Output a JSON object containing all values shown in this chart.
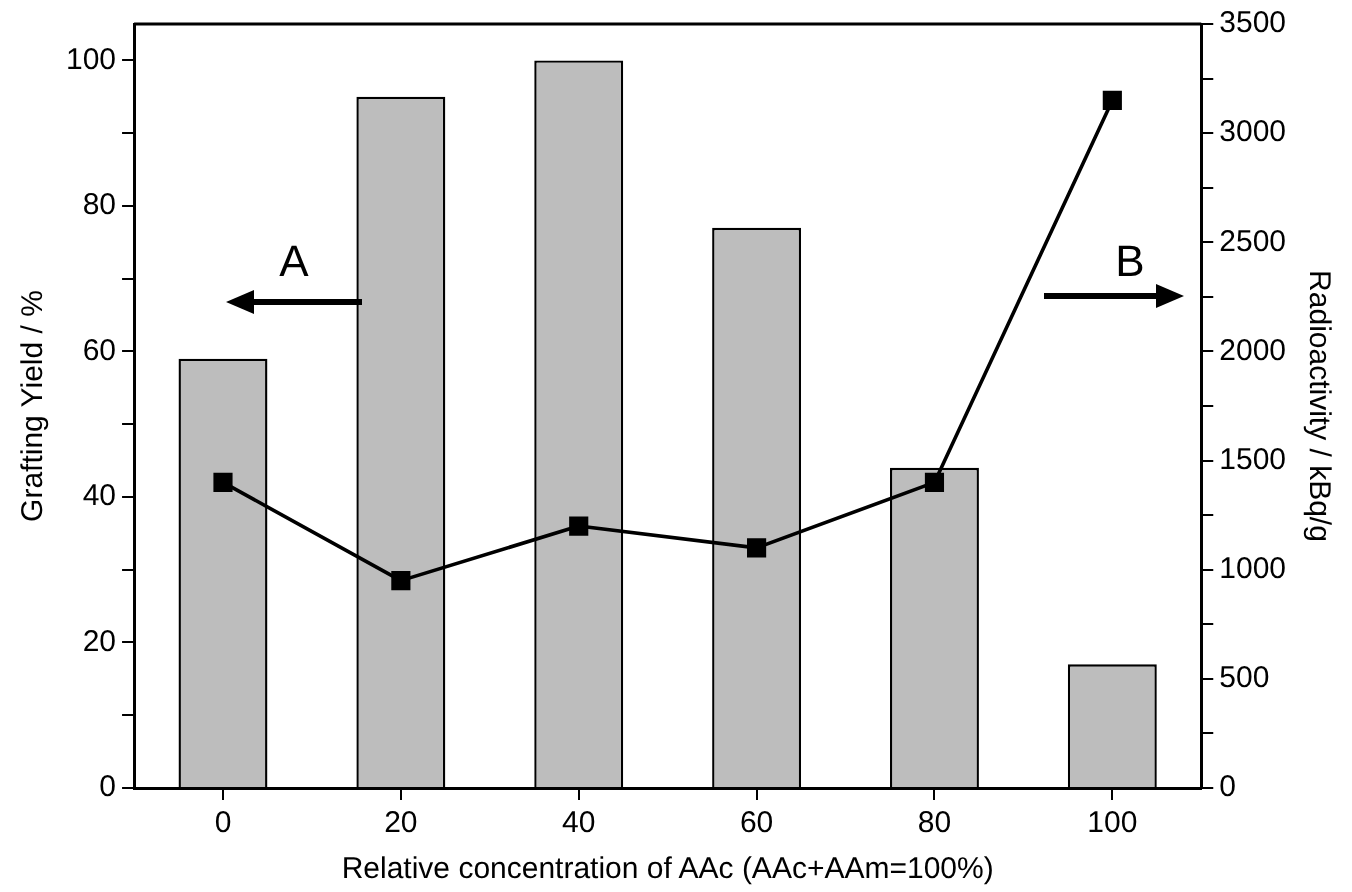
{
  "chart_data": {
    "type": "bar",
    "xlabel": "Relative concentration of AAc (AAc+AAm=100%)",
    "ylabel": "Grafting Yield / %",
    "y2label": "Radioactivity / kBq/g",
    "categories": [
      "0",
      "20",
      "40",
      "60",
      "80",
      "100"
    ],
    "series": [
      {
        "color": "#bdbdbd",
        "values": [
          59,
          95,
          100,
          77,
          44,
          17
        ]
      },
      {
        "type": "line",
        "axis": "y2",
        "color": "#000000",
        "marker": "square",
        "values": [
          1400,
          950,
          1200,
          1100,
          1400,
          3150
        ]
      }
    ],
    "ylim": [
      0,
      105
    ],
    "yticks": [
      0,
      {
        "value": 10,
        "label": null
      },
      20,
      {
        "value": 30,
        "label": null
      },
      40,
      {
        "value": 50,
        "label": null
      },
      60,
      {
        "value": 70,
        "label": null
      },
      80,
      {
        "value": 90,
        "label": null
      },
      100
    ],
    "y2lim": [
      0,
      3500
    ],
    "y2ticks": [
      0,
      {
        "value": 250,
        "label": null
      },
      500,
      {
        "value": 750,
        "label": null
      },
      1000,
      {
        "value": 1250,
        "label": null
      },
      1500,
      {
        "value": 1750,
        "label": null
      },
      2000,
      {
        "value": 2250,
        "label": null
      },
      2500,
      {
        "value": 2750,
        "label": null
      },
      3000,
      {
        "value": 3250,
        "label": null
      },
      3500
    ],
    "annotations": [
      "A",
      "B"
    ],
    "grid": false,
    "legend": false
  }
}
